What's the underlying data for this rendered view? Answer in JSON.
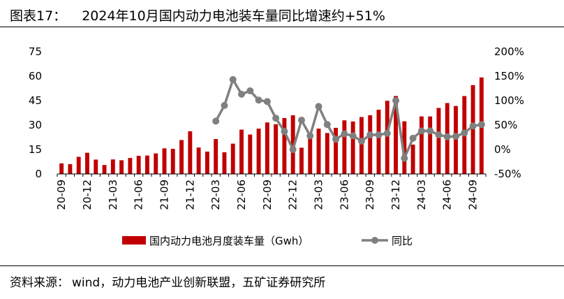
{
  "header": {
    "figure_label": "图表17：",
    "title": "2024年10月国内动力电池装车量同比增速约+51%"
  },
  "footer": {
    "source_label": "资料来源：",
    "source_text": "wind，动力电池产业创新联盟，五矿证券研究所"
  },
  "colors": {
    "bar": "#c00000",
    "line": "#808080"
  },
  "chart_data": {
    "type": "bar",
    "title": "2024年10月国内动力电池装车量同比增速约+51%",
    "x": [
      "20-09",
      "20-10",
      "20-11",
      "20-12",
      "21-01",
      "21-02",
      "21-03",
      "21-04",
      "21-05",
      "21-06",
      "21-07",
      "21-08",
      "21-09",
      "21-10",
      "21-11",
      "21-12",
      "22-01",
      "22-02",
      "22-03",
      "22-04",
      "22-05",
      "22-06",
      "22-07",
      "22-08",
      "22-09",
      "22-10",
      "22-11",
      "22-12",
      "23-01",
      "23-02",
      "23-03",
      "23-04",
      "23-05",
      "23-06",
      "23-07",
      "23-08",
      "23-09",
      "23-10",
      "23-11",
      "23-12",
      "24-01",
      "24-02",
      "24-03",
      "24-04",
      "24-05",
      "24-06",
      "24-07",
      "24-08",
      "24-09",
      "24-10"
    ],
    "x_tick_labels": [
      "20-09",
      "20-12",
      "21-03",
      "21-06",
      "21-09",
      "21-12",
      "22-03",
      "22-06",
      "22-09",
      "22-12",
      "23-03",
      "23-06",
      "23-09",
      "23-12",
      "24-03",
      "24-06",
      "24-09"
    ],
    "y_left": {
      "ticks": [
        "0",
        "15",
        "30",
        "45",
        "60",
        "75"
      ],
      "range": [
        0,
        75
      ]
    },
    "y_right": {
      "ticks": [
        "-50%",
        "0%",
        "50%",
        "100%",
        "150%",
        "200%"
      ],
      "range": [
        -50,
        200
      ]
    },
    "legend_position": "bottom",
    "series": [
      {
        "name": "国内动力电池月度装车量（Gwh）",
        "type": "bar",
        "axis": "left",
        "values": [
          6.5,
          6.0,
          10.5,
          13.0,
          8.8,
          5.5,
          8.9,
          8.4,
          9.8,
          11.1,
          11.3,
          12.6,
          15.7,
          15.4,
          20.8,
          26.2,
          16.2,
          13.7,
          21.4,
          13.3,
          18.6,
          27.2,
          24.2,
          27.8,
          31.6,
          30.5,
          34.3,
          36.0,
          16.1,
          21.9,
          27.8,
          25.1,
          28.3,
          32.9,
          32.2,
          34.9,
          36.0,
          39.4,
          44.9,
          47.8,
          32.3,
          18.0,
          35.3,
          35.3,
          40.5,
          43.5,
          41.7,
          47.8,
          54.5,
          59.2
        ]
      },
      {
        "name": "同比",
        "type": "line",
        "axis": "right",
        "values": [
          null,
          null,
          null,
          null,
          null,
          null,
          null,
          null,
          null,
          null,
          null,
          null,
          null,
          null,
          null,
          null,
          null,
          null,
          58,
          90,
          143,
          113,
          120,
          101,
          98,
          64,
          37,
          0,
          60,
          28,
          88,
          51,
          21,
          32,
          28,
          17,
          30,
          30,
          33,
          100,
          -18,
          23,
          38,
          38,
          30,
          26,
          27,
          34,
          48,
          51
        ]
      }
    ]
  }
}
